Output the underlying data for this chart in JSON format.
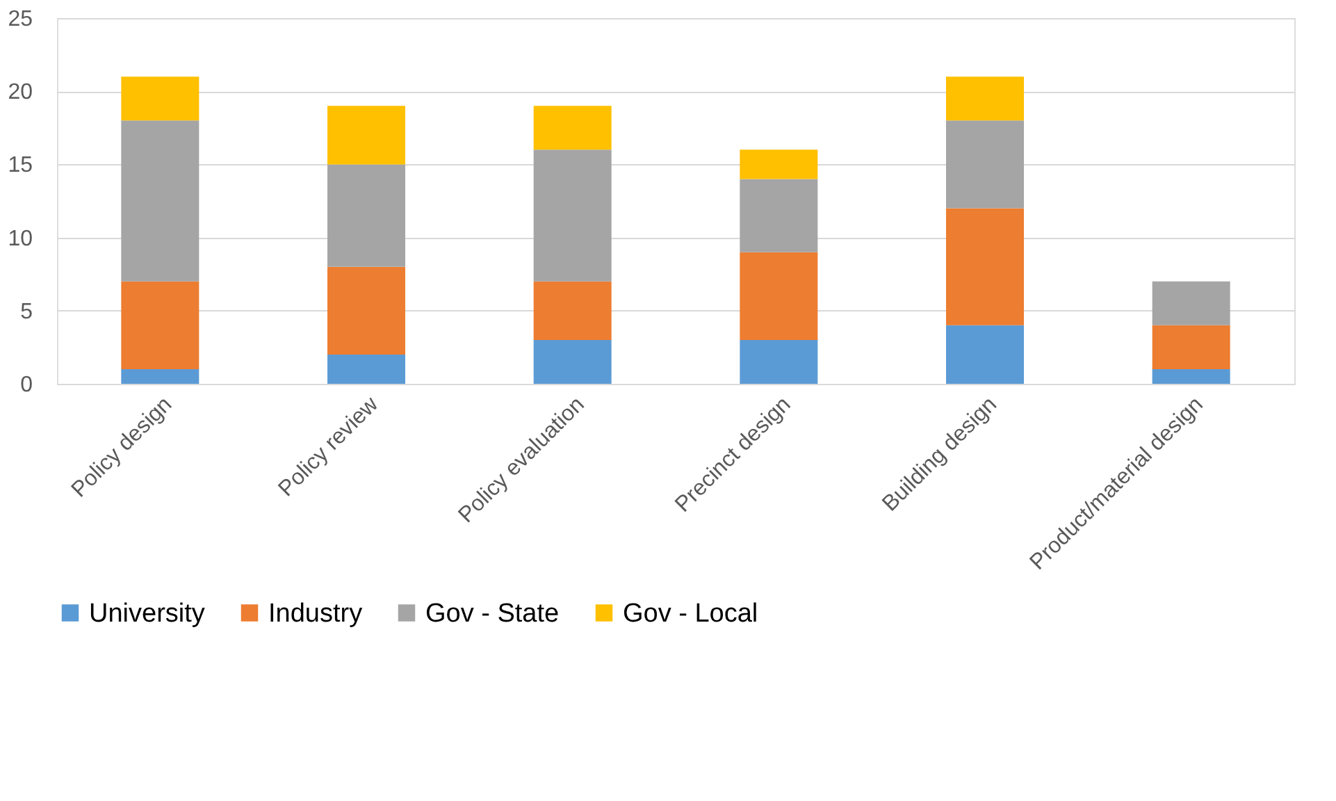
{
  "chart_data": {
    "type": "bar",
    "stacked": true,
    "categories": [
      "Policy design",
      "Policy review",
      "Policy evaluation",
      "Precinct design",
      "Building design",
      "Product/material design"
    ],
    "series": [
      {
        "name": "University",
        "color": "#5b9bd5",
        "values": [
          1,
          2,
          3,
          3,
          4,
          1
        ]
      },
      {
        "name": "Industry",
        "color": "#ed7d31",
        "values": [
          6,
          6,
          4,
          6,
          8,
          3
        ]
      },
      {
        "name": "Gov - State",
        "color": "#a5a5a5",
        "values": [
          11,
          7,
          9,
          5,
          6,
          3
        ]
      },
      {
        "name": "Gov - Local",
        "color": "#ffc000",
        "values": [
          3,
          4,
          3,
          2,
          3,
          0
        ]
      }
    ],
    "ylim": [
      0,
      25
    ],
    "yticks": [
      0,
      5,
      10,
      15,
      20,
      25
    ],
    "grid": "y",
    "legend": "bottom"
  }
}
